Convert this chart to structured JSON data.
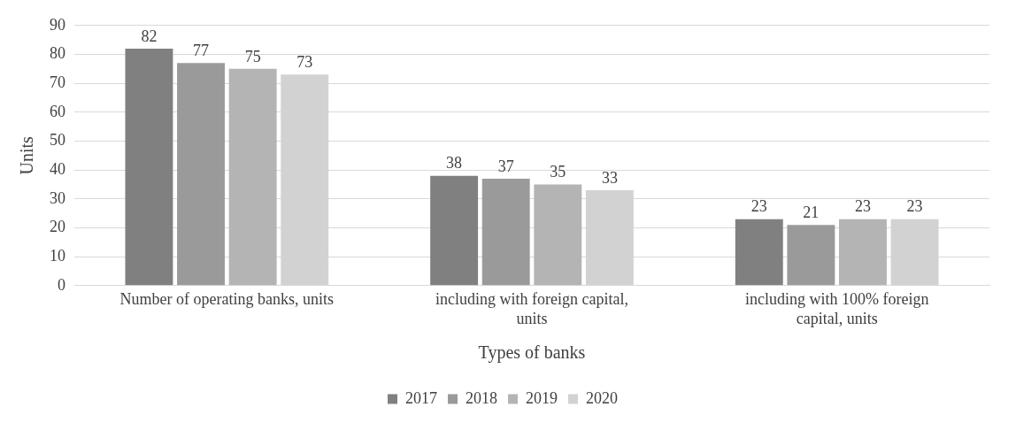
{
  "chart_data": {
    "type": "bar",
    "xlabel": "Types of banks",
    "ylabel": "Units",
    "categories": [
      "Number of operating banks, units",
      "including with foreign capital, units",
      "including with 100% foreign capital, units"
    ],
    "series": [
      {
        "name": "2017",
        "color": "#808080",
        "values": [
          82,
          38,
          23
        ]
      },
      {
        "name": "2018",
        "color": "#9a9a9a",
        "values": [
          77,
          37,
          21
        ]
      },
      {
        "name": "2019",
        "color": "#b4b4b4",
        "values": [
          75,
          35,
          23
        ]
      },
      {
        "name": "2020",
        "color": "#d2d2d2",
        "values": [
          73,
          33,
          23
        ]
      }
    ],
    "ylim": [
      0,
      90
    ],
    "yticks": [
      0,
      10,
      20,
      30,
      40,
      50,
      60,
      70,
      80,
      90
    ],
    "grid": "y",
    "legend": "bottom",
    "data_labels": true
  }
}
